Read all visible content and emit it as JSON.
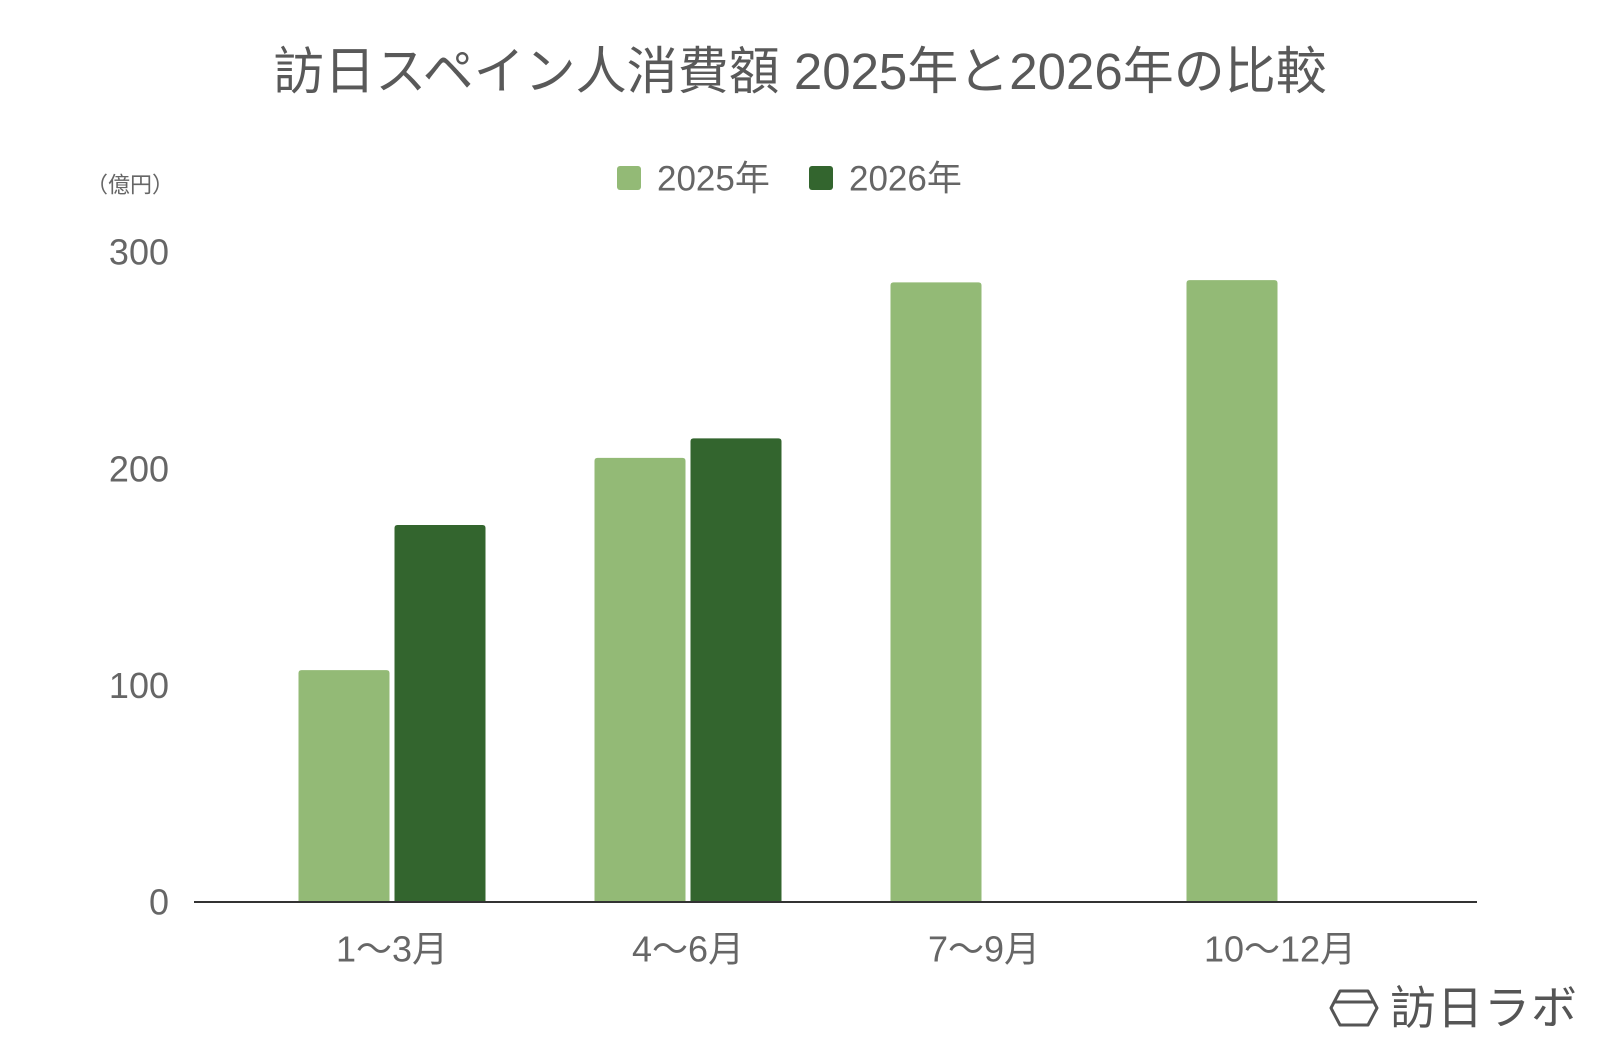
{
  "chart_data": {
    "type": "bar",
    "title": "訪日スペイン人消費額 2025年と2026年の比較",
    "ylabel": "（億円）",
    "categories": [
      "1〜3月",
      "4〜6月",
      "7〜9月",
      "10〜12月"
    ],
    "series": [
      {
        "name": "2025年",
        "color": "#93ba76",
        "values": [
          107,
          205,
          286,
          287
        ]
      },
      {
        "name": "2026年",
        "color": "#33652e",
        "values": [
          174,
          214,
          null,
          null
        ]
      }
    ],
    "ylim": [
      0,
      300
    ],
    "yticks": [
      0,
      100,
      200,
      300
    ],
    "grid": false,
    "legend": "top-center"
  },
  "logo": {
    "text": "訪日ラボ",
    "icon": "hexagon-logo-icon"
  }
}
